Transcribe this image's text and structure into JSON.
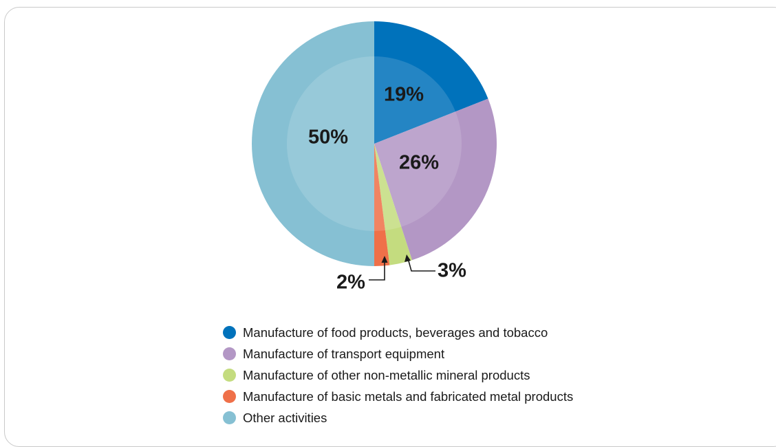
{
  "chart_data": {
    "type": "pie",
    "title": "",
    "slices": [
      {
        "name": "Manufacture of food products, beverages and tobacco",
        "value": 19,
        "label": "19%",
        "color": "#0072bb"
      },
      {
        "name": "Manufacture of transport equipment",
        "value": 26,
        "label": "26%",
        "color": "#b397c5"
      },
      {
        "name": "Manufacture of other non-metallic mineral products",
        "value": 3,
        "label": "3%",
        "color": "#c4dc7f"
      },
      {
        "name": "Manufacture of basic metals and fabricated metal products",
        "value": 2,
        "label": "2%",
        "color": "#ef7049"
      },
      {
        "name": "Other activities",
        "value": 50,
        "label": "50%",
        "color": "#86c0d3"
      }
    ],
    "legend_position": "bottom"
  }
}
